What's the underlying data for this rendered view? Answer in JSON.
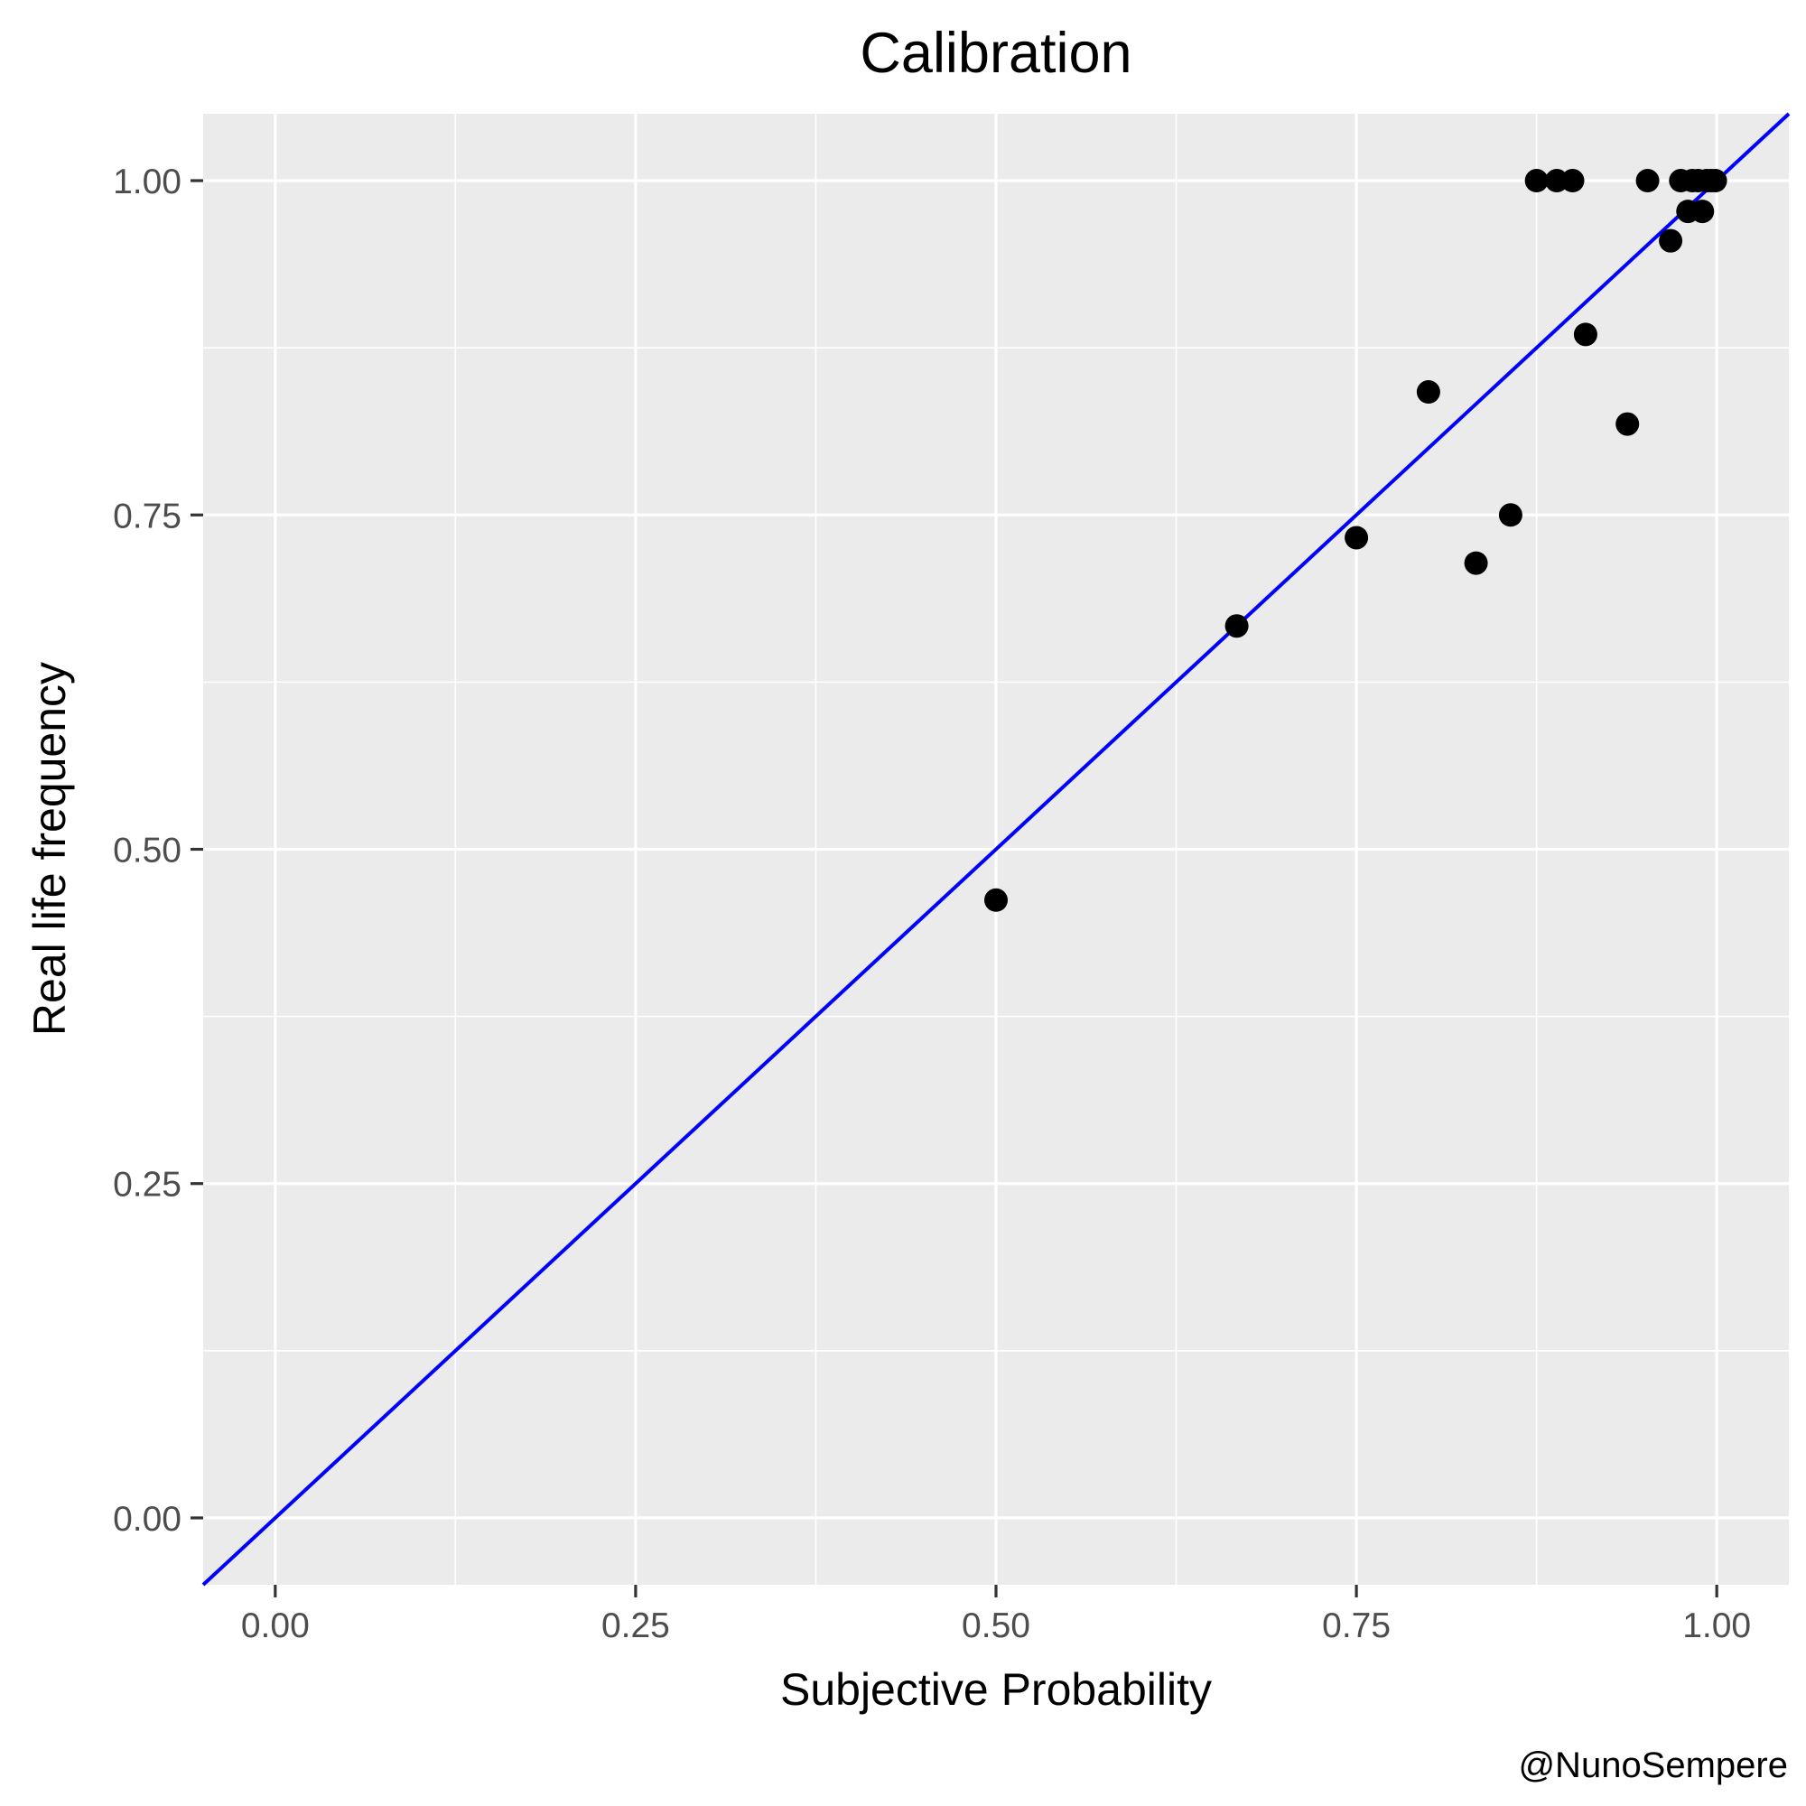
{
  "chart_data": {
    "type": "scatter",
    "title": "Calibration",
    "xlabel": "Subjective Probability",
    "ylabel": "Real life frequency",
    "caption": "@NunoSempere",
    "xlim": [
      -0.05,
      1.05
    ],
    "ylim": [
      -0.05,
      1.05
    ],
    "x_ticks": [
      0,
      0.25,
      0.5,
      0.75,
      1
    ],
    "x_tick_labels": [
      "0.00",
      "0.25",
      "0.50",
      "0.75",
      "1.00"
    ],
    "y_ticks": [
      0,
      0.25,
      0.5,
      0.75,
      1
    ],
    "y_tick_labels": [
      "0.00",
      "0.25",
      "0.50",
      "0.75",
      "1.00"
    ],
    "minor_ticks": [
      0.125,
      0.375,
      0.625,
      0.875
    ],
    "grid": true,
    "reference_line": {
      "slope": 1,
      "intercept": 0,
      "color": "#0000ff"
    },
    "point_color": "#000000",
    "panel_color": "#ebebeb",
    "points": [
      {
        "x": 0.5,
        "y": 0.462
      },
      {
        "x": 0.667,
        "y": 0.667
      },
      {
        "x": 0.75,
        "y": 0.733
      },
      {
        "x": 0.8,
        "y": 0.842
      },
      {
        "x": 0.833,
        "y": 0.714
      },
      {
        "x": 0.857,
        "y": 0.75
      },
      {
        "x": 0.875,
        "y": 1.0
      },
      {
        "x": 0.889,
        "y": 1.0
      },
      {
        "x": 0.9,
        "y": 1.0
      },
      {
        "x": 0.909,
        "y": 0.885
      },
      {
        "x": 0.938,
        "y": 0.818
      },
      {
        "x": 0.952,
        "y": 1.0
      },
      {
        "x": 0.968,
        "y": 0.955
      },
      {
        "x": 0.975,
        "y": 1.0
      },
      {
        "x": 0.98,
        "y": 0.977
      },
      {
        "x": 0.983,
        "y": 1.0
      },
      {
        "x": 0.987,
        "y": 1.0
      },
      {
        "x": 0.99,
        "y": 0.977
      },
      {
        "x": 0.993,
        "y": 1.0
      },
      {
        "x": 0.996,
        "y": 1.0
      },
      {
        "x": 0.999,
        "y": 1.0
      }
    ]
  }
}
